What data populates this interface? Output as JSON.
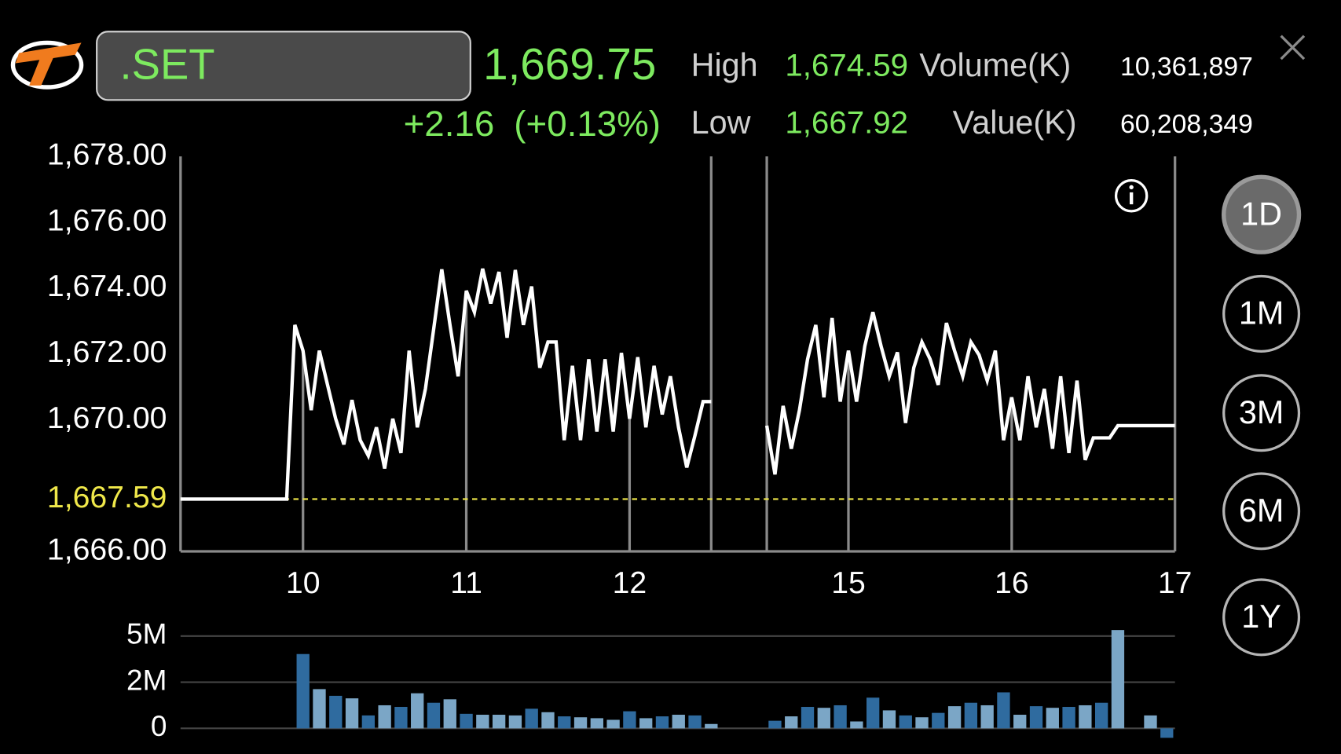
{
  "header": {
    "symbol": ".SET",
    "last": "1,669.75",
    "change": "+2.16",
    "change_pct": "(+0.13%)",
    "high_label": "High",
    "high": "1,674.59",
    "low_label": "Low",
    "low": "1,667.92",
    "volume_label": "Volume(K)",
    "volume": "10,361,897",
    "value_label": "Value(K)",
    "value": "60,208,349"
  },
  "ranges": [
    "1D",
    "1M",
    "3M",
    "6M",
    "1Y"
  ],
  "selected_range": 0,
  "chart_data": [
    {
      "type": "line",
      "color": "#ffffff",
      "xlim": [
        9.25,
        17
      ],
      "session_break": [
        12.5,
        14.5
      ],
      "xticks": [
        10,
        11,
        12,
        15,
        16,
        17
      ],
      "ylim": [
        1666,
        1678
      ],
      "yticks": [
        {
          "value": 1666,
          "label": "1,666.00"
        },
        {
          "value": 1670,
          "label": "1,670.00"
        },
        {
          "value": 1672,
          "label": "1,672.00"
        },
        {
          "value": 1674,
          "label": "1,674.00"
        },
        {
          "value": 1676,
          "label": "1,676.00"
        },
        {
          "value": 1678,
          "label": "1,678.00"
        }
      ],
      "reference": {
        "value": 1667.59,
        "label": "1,667.59",
        "color": "#f0e84a"
      },
      "x": [
        9.25,
        9.9,
        9.95,
        10,
        10.05,
        10.1,
        10.15,
        10.2,
        10.25,
        10.3,
        10.35,
        10.4,
        10.45,
        10.5,
        10.55,
        10.6,
        10.65,
        10.7,
        10.75,
        10.8,
        10.85,
        10.9,
        10.95,
        11,
        11.05,
        11.1,
        11.15,
        11.2,
        11.25,
        11.3,
        11.35,
        11.4,
        11.45,
        11.5,
        11.55,
        11.6,
        11.65,
        11.7,
        11.75,
        11.8,
        11.85,
        11.9,
        11.95,
        12,
        12.05,
        12.1,
        12.15,
        12.2,
        12.25,
        12.3,
        12.35,
        12.4,
        12.45,
        12.5,
        14.5,
        14.55,
        14.6,
        14.65,
        14.7,
        14.75,
        14.8,
        14.85,
        14.9,
        14.95,
        15,
        15.05,
        15.1,
        15.15,
        15.2,
        15.25,
        15.3,
        15.35,
        15.4,
        15.45,
        15.5,
        15.55,
        15.6,
        15.65,
        15.7,
        15.75,
        15.8,
        15.85,
        15.9,
        15.95,
        16,
        16.05,
        16.1,
        16.15,
        16.2,
        16.25,
        16.3,
        16.35,
        16.4,
        16.45,
        16.5,
        16.6,
        16.65,
        17
      ],
      "values": [
        1667.59,
        1667.59,
        1672.88,
        1672.1,
        1670.29,
        1672.1,
        1671.06,
        1670.03,
        1669.25,
        1670.6,
        1669.38,
        1668.91,
        1669.77,
        1668.52,
        1670.03,
        1668.99,
        1672.1,
        1669.77,
        1670.94,
        1672.75,
        1674.57,
        1672.88,
        1671.32,
        1673.92,
        1673.27,
        1674.59,
        1673.53,
        1674.49,
        1672.49,
        1674.55,
        1672.88,
        1674.05,
        1671.58,
        1672.36,
        1672.36,
        1669.38,
        1671.64,
        1669.38,
        1671.84,
        1669.64,
        1671.84,
        1669.64,
        1672.03,
        1670.03,
        1671.9,
        1669.77,
        1671.64,
        1670.16,
        1671.32,
        1669.77,
        1668.55,
        1669.51,
        1670.55,
        1670.55,
        1669.82,
        1668.34,
        1670.42,
        1669.12,
        1670.29,
        1671.84,
        1672.88,
        1670.68,
        1673.09,
        1670.55,
        1672.1,
        1670.55,
        1672.23,
        1673.27,
        1672.23,
        1671.32,
        1672.05,
        1669.9,
        1671.58,
        1672.36,
        1671.84,
        1671.06,
        1672.94,
        1672.1,
        1671.32,
        1672.36,
        1671.97,
        1671.19,
        1672.1,
        1669.38,
        1670.68,
        1669.38,
        1671.32,
        1669.77,
        1670.94,
        1669.12,
        1671.32,
        1668.99,
        1671.19,
        1668.78,
        1669.45,
        1669.45,
        1669.82,
        1669.82
      ]
    },
    {
      "type": "bar",
      "xlim": [
        9.25,
        17
      ],
      "session_break": [
        12.5,
        14.5
      ],
      "ylim": [
        -500000,
        5500000
      ],
      "yticks": [
        0,
        {
          "value": 2000000,
          "label": "2M"
        },
        {
          "value": 5000000,
          "label": "5M"
        }
      ],
      "x": [
        10,
        10.1,
        10.2,
        10.3,
        10.4,
        10.5,
        10.6,
        10.7,
        10.8,
        10.9,
        11,
        11.1,
        11.2,
        11.3,
        11.4,
        11.5,
        11.6,
        11.7,
        11.8,
        11.9,
        12,
        12.1,
        12.2,
        12.3,
        12.4,
        12.5,
        14.55,
        14.65,
        14.75,
        14.85,
        14.95,
        15.05,
        15.15,
        15.25,
        15.35,
        15.45,
        15.55,
        15.65,
        15.75,
        15.85,
        15.95,
        16.05,
        16.15,
        16.25,
        16.35,
        16.45,
        16.55,
        16.65,
        16.75,
        16.85,
        16.95
      ],
      "values": [
        3830000,
        1700000,
        1410000,
        1300000,
        560000,
        1000000,
        930000,
        1520000,
        1110000,
        1260000,
        630000,
        590000,
        590000,
        560000,
        850000,
        700000,
        520000,
        480000,
        440000,
        370000,
        740000,
        440000,
        520000,
        590000,
        560000,
        190000,
        330000,
        520000,
        930000,
        890000,
        1000000,
        300000,
        1330000,
        780000,
        560000,
        480000,
        670000,
        960000,
        1110000,
        1000000,
        1560000,
        590000,
        960000,
        890000,
        930000,
        1000000,
        1110000,
        5390000,
        0,
        560000,
        -410000
      ],
      "colors": [
        "#2f6b9f",
        "#7ba6c6",
        "#2f6b9f",
        "#7ba6c6",
        "#2f6b9f",
        "#7ba6c6",
        "#2f6b9f",
        "#7ba6c6",
        "#2f6b9f",
        "#7ba6c6",
        "#2f6b9f",
        "#7ba6c6",
        "#7ba6c6",
        "#7ba6c6",
        "#2f6b9f",
        "#7ba6c6",
        "#2f6b9f",
        "#7ba6c6",
        "#7ba6c6",
        "#7ba6c6",
        "#2f6b9f",
        "#7ba6c6",
        "#2f6b9f",
        "#7ba6c6",
        "#2f6b9f",
        "#7ba6c6",
        "#2f6b9f",
        "#7ba6c6",
        "#2f6b9f",
        "#7ba6c6",
        "#2f6b9f",
        "#7ba6c6",
        "#2f6b9f",
        "#7ba6c6",
        "#2f6b9f",
        "#7ba6c6",
        "#2f6b9f",
        "#7ba6c6",
        "#2f6b9f",
        "#7ba6c6",
        "#2f6b9f",
        "#7ba6c6",
        "#2f6b9f",
        "#7ba6c6",
        "#2f6b9f",
        "#7ba6c6",
        "#2f6b9f",
        "#7ba6c6",
        "#2f6b9f",
        "#7ba6c6",
        "#2f6b9f"
      ]
    }
  ]
}
